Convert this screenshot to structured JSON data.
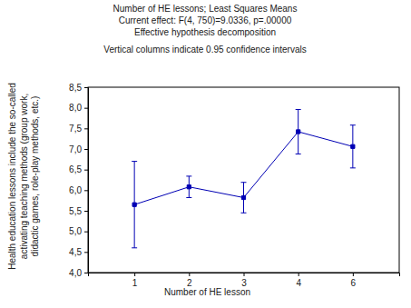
{
  "chart_data": {
    "type": "line",
    "title": "Number of HE lessons; Least Squares Means",
    "subtitle": [
      "Current effect: F(4, 750)=9.0336, p=.00000",
      "Effective hypothesis decomposition",
      "Vertical columns indicate 0.95 confidence intervals"
    ],
    "x_label": "Number of HE lesson",
    "y_label": [
      "Health education lessons include the so-called",
      "activating teaching methods (group work,",
      "didactic games, role-play methods, etc.)"
    ],
    "categories": [
      "1",
      "2",
      "3",
      "4",
      "6"
    ],
    "series": [
      {
        "name": "Least Squares Means",
        "color": "#0000b4",
        "marker": "square",
        "line_style": "solid",
        "values": [
          5.65,
          6.08,
          5.82,
          7.42,
          7.06
        ],
        "errors": [
          1.05,
          0.26,
          0.37,
          0.54,
          0.52
        ]
      }
    ],
    "ylim": [
      4,
      8.5
    ],
    "yticks": [
      {
        "value": 4,
        "label": "4,0"
      },
      {
        "value": 4.5,
        "label": "4,5"
      },
      {
        "value": 5,
        "label": "5,0"
      },
      {
        "value": 5.5,
        "label": "5,5"
      },
      {
        "value": 6,
        "label": "6,0"
      },
      {
        "value": 6.5,
        "label": "6,5"
      },
      {
        "value": 7,
        "label": "7,0"
      },
      {
        "value": 7.5,
        "label": "7,5"
      },
      {
        "value": 8,
        "label": "8,0"
      },
      {
        "value": 8.5,
        "label": "8,5"
      }
    ],
    "grid": false
  }
}
